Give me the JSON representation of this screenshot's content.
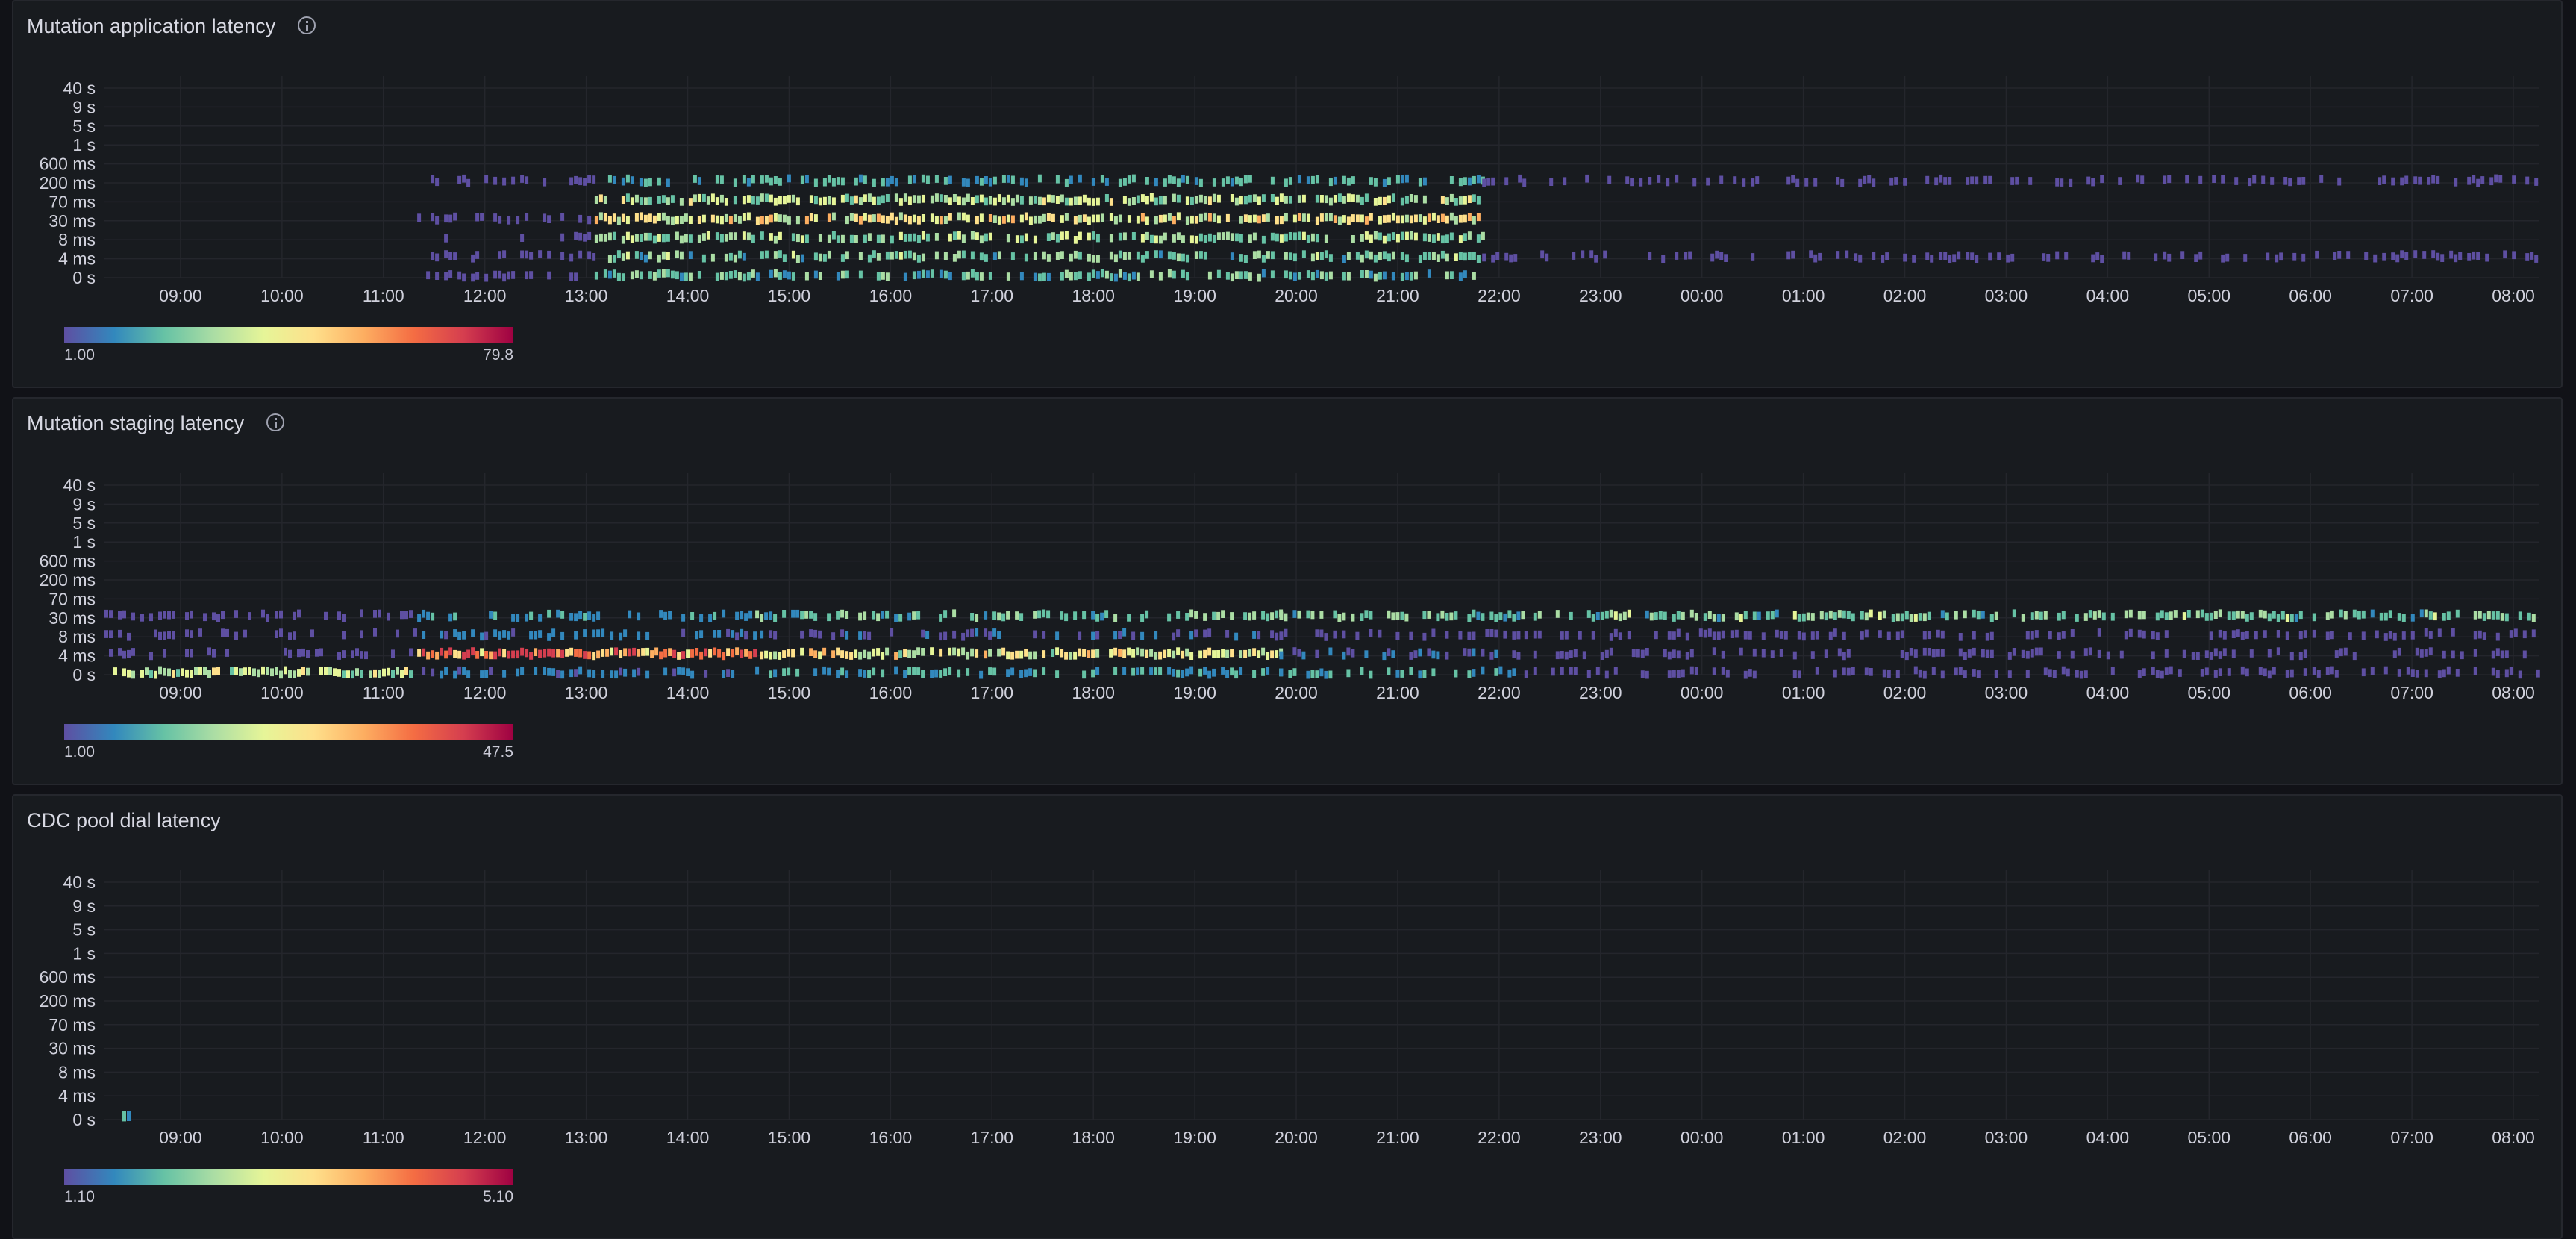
{
  "x_ticks": [
    "09:00",
    "10:00",
    "11:00",
    "12:00",
    "13:00",
    "14:00",
    "15:00",
    "16:00",
    "17:00",
    "18:00",
    "19:00",
    "20:00",
    "21:00",
    "22:00",
    "23:00",
    "00:00",
    "01:00",
    "02:00",
    "03:00",
    "04:00",
    "05:00",
    "06:00",
    "07:00",
    "08:00"
  ],
  "y_ticks": [
    "40 s",
    "9 s",
    "5 s",
    "1 s",
    "600 ms",
    "200 ms",
    "70 ms",
    "30 ms",
    "8 ms",
    "4 ms",
    "0 s"
  ],
  "colors": {
    "panel_bg": "#181b1f",
    "scale": [
      "#5e4fa2",
      "#3288bd",
      "#66c2a5",
      "#abdda4",
      "#e6f598",
      "#fee08b",
      "#fdae61",
      "#f46d43",
      "#d53e4f",
      "#9e0142"
    ]
  },
  "panels": [
    {
      "title": "Mutation application latency",
      "info_icon": "info-circle-icon",
      "legend": {
        "min": "1.00",
        "max": "79.8"
      }
    },
    {
      "title": "Mutation staging latency",
      "info_icon": "info-circle-icon",
      "legend": {
        "min": "1.00",
        "max": "47.5"
      }
    },
    {
      "title": "CDC pool dial latency",
      "legend": {
        "min": "1.10",
        "max": "5.10"
      }
    }
  ],
  "chart_data": [
    {
      "type": "heatmap",
      "title": "Mutation application latency",
      "x": [
        "08:15",
        "09:00",
        "10:00",
        "11:00",
        "12:00",
        "13:00",
        "14:00",
        "15:00",
        "16:00",
        "17:00",
        "18:00",
        "19:00",
        "20:00",
        "21:00",
        "22:00",
        "23:00",
        "00:00",
        "01:00",
        "02:00",
        "03:00",
        "04:00",
        "05:00",
        "06:00",
        "07:00",
        "08:00"
      ],
      "y_buckets": [
        "0 s",
        "4 ms",
        "8 ms",
        "30 ms",
        "70 ms",
        "200 ms",
        "600 ms",
        "1 s",
        "5 s",
        "9 s",
        "40 s"
      ],
      "segments": [
        {
          "from": "11:20",
          "to": "13:05",
          "buckets": {
            "0 s": 0.05,
            "4 ms": 0.05,
            "8 ms": 0.02,
            "30 ms": 0.05,
            "200 ms": 0.04
          }
        },
        {
          "from": "13:05",
          "to": "21:50",
          "buckets": {
            "0 s": 0.3,
            "4 ms": 0.35,
            "8 ms": 0.4,
            "30 ms": 0.55,
            "70 ms": 0.45,
            "200 ms": 0.25
          }
        },
        {
          "from": "21:50",
          "to": "08:30",
          "buckets": {
            "4 ms": 0.04,
            "200 ms": 0.04
          }
        }
      ],
      "color_scale": {
        "min": 1.0,
        "max": 79.8
      },
      "legend": "bottom-left"
    },
    {
      "type": "heatmap",
      "title": "Mutation staging latency",
      "x": [
        "08:15",
        "09:00",
        "10:00",
        "11:00",
        "12:00",
        "13:00",
        "14:00",
        "15:00",
        "16:00",
        "17:00",
        "18:00",
        "19:00",
        "20:00",
        "21:00",
        "22:00",
        "23:00",
        "00:00",
        "01:00",
        "02:00",
        "03:00",
        "04:00",
        "05:00",
        "06:00",
        "07:00",
        "08:00"
      ],
      "y_buckets": [
        "0 s",
        "4 ms",
        "8 ms",
        "30 ms",
        "70 ms",
        "200 ms",
        "600 ms",
        "1 s",
        "5 s",
        "9 s",
        "40 s"
      ],
      "segments": [
        {
          "from": "08:15",
          "to": "11:20",
          "buckets": {
            "0 s": 0.45,
            "4 ms": 0.06,
            "8 ms": 0.06,
            "30 ms": 0.08
          }
        },
        {
          "from": "11:20",
          "to": "14:40",
          "buckets": {
            "0 s": 0.15,
            "4 ms": 0.85,
            "8 ms": 0.15,
            "30 ms": 0.2
          }
        },
        {
          "from": "14:40",
          "to": "19:50",
          "buckets": {
            "0 s": 0.25,
            "4 ms": 0.55,
            "8 ms": 0.12,
            "30 ms": 0.3
          }
        },
        {
          "from": "19:50",
          "to": "22:15",
          "buckets": {
            "0 s": 0.25,
            "4 ms": 0.12,
            "8 ms": 0.08,
            "30 ms": 0.3
          }
        },
        {
          "from": "22:15",
          "to": "08:30",
          "buckets": {
            "0 s": 0.05,
            "4 ms": 0.07,
            "8 ms": 0.06,
            "30 ms": 0.35
          }
        }
      ],
      "color_scale": {
        "min": 1.0,
        "max": 47.5
      },
      "legend": "bottom-left"
    },
    {
      "type": "heatmap",
      "title": "CDC pool dial latency",
      "x": [
        "08:15",
        "09:00",
        "10:00",
        "11:00",
        "12:00",
        "13:00",
        "14:00",
        "15:00",
        "16:00",
        "17:00",
        "18:00",
        "19:00",
        "20:00",
        "21:00",
        "22:00",
        "23:00",
        "00:00",
        "01:00",
        "02:00",
        "03:00",
        "04:00",
        "05:00",
        "06:00",
        "07:00",
        "08:00"
      ],
      "y_buckets": [
        "0 s",
        "4 ms",
        "8 ms",
        "30 ms",
        "70 ms",
        "200 ms",
        "600 ms",
        "1 s",
        "5 s",
        "9 s",
        "40 s"
      ],
      "segments": [
        {
          "from": "08:15",
          "to": "08:30",
          "buckets": {
            "0 s": 0.3
          }
        }
      ],
      "color_scale": {
        "min": 1.1,
        "max": 5.1
      },
      "legend": "bottom-left"
    }
  ]
}
